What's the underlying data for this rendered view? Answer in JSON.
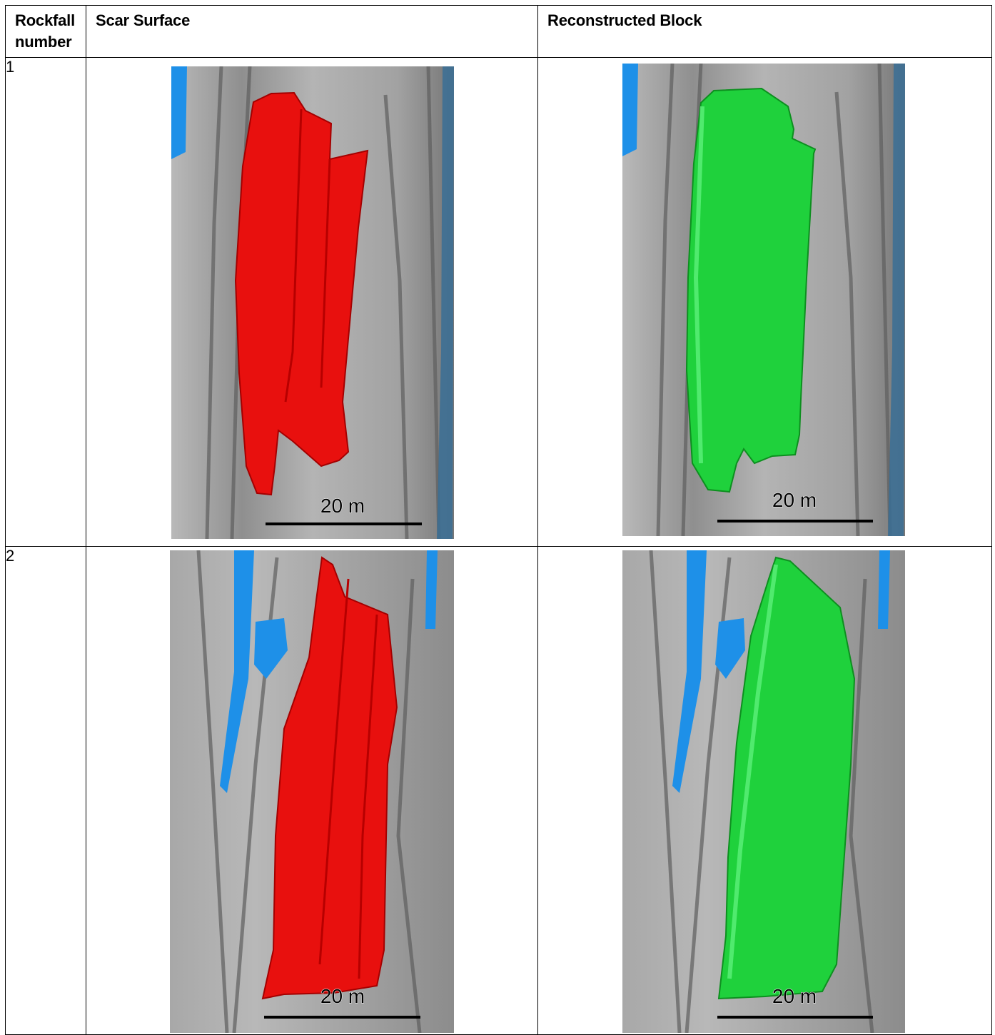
{
  "table": {
    "headers": {
      "rockfall_number": "Rockfall number",
      "scar_surface": "Scar Surface",
      "reconstructed_block": "Reconstructed Block"
    },
    "rows": [
      {
        "number": "1",
        "scar_surface": {
          "scale_label": "20 m"
        },
        "reconstructed_block": {
          "scale_label": "20 m"
        }
      },
      {
        "number": "2",
        "scar_surface": {
          "scale_label": "20 m"
        },
        "reconstructed_block": {
          "scale_label": "20 m"
        }
      }
    ]
  },
  "colors": {
    "scar_red": "#e8100e",
    "block_green": "#1fd13c",
    "terrain_gray": "#a9a9a9",
    "vegetation_blue": "#1e90e8"
  }
}
